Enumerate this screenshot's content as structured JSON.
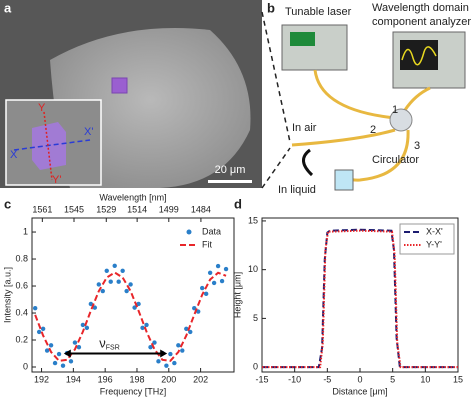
{
  "panels": {
    "a": {
      "label": "a",
      "scale_bar": "20 μm",
      "inset_labels": {
        "x": "X",
        "x_prime": "X'",
        "y": "Y",
        "y_prime": "Y'"
      }
    },
    "b": {
      "label": "b",
      "tunable_laser": "Tunable laser",
      "analyzer": [
        "Wavelength domain",
        "component analyzer"
      ],
      "in_air": "In air",
      "in_liquid": "In liquid",
      "circulator": "Circulator",
      "ports": [
        "1",
        "2",
        "3"
      ]
    }
  },
  "chart_data": [
    {
      "type": "scatter",
      "panel_label": "c",
      "xlabel": "Frequency [THz]",
      "ylabel": "Intensity [a.u.]",
      "x2label": "Wavelength [nm]",
      "xlim": [
        191.4,
        204.1
      ],
      "ylim": [
        -0.037,
        1.104
      ],
      "xticks": [
        192,
        194,
        196,
        198,
        200,
        202
      ],
      "yticks": [
        0,
        0.2,
        0.4,
        0.6,
        0.8,
        1
      ],
      "x2ticks": [
        {
          "value": 192.05,
          "label": "1561"
        },
        {
          "value": 194.04,
          "label": "1545"
        },
        {
          "value": 196.07,
          "label": "1529"
        },
        {
          "value": 198.01,
          "label": "1514"
        },
        {
          "value": 200.0,
          "label": "1499"
        },
        {
          "value": 202.02,
          "label": "1484"
        }
      ],
      "legend": "upper right",
      "series": [
        {
          "name": "Data",
          "type": "scatter",
          "color": "#2a7fc9",
          "x": [
            191.6,
            192.1,
            192.6,
            193.1,
            193.6,
            194.1,
            194.6,
            195.1,
            195.6,
            196.1,
            196.6,
            197.1,
            197.6,
            198.1,
            198.6,
            199.1,
            199.6,
            200.1,
            200.6,
            201.1,
            201.6,
            202.1,
            202.6,
            203.1,
            203.6,
            191.85,
            192.35,
            192.85,
            193.35,
            193.85,
            194.35,
            194.85,
            195.35,
            195.85,
            196.35,
            196.85,
            197.35,
            197.85,
            198.35,
            198.85,
            199.35,
            199.85,
            200.35,
            200.85,
            201.35,
            201.85,
            202.35,
            202.85,
            203.35
          ],
          "values": [
            0.436,
            0.283,
            0.161,
            0.096,
            0.103,
            0.181,
            0.312,
            0.467,
            0.612,
            0.713,
            0.75,
            0.713,
            0.612,
            0.467,
            0.312,
            0.181,
            0.103,
            0.096,
            0.161,
            0.283,
            0.436,
            0.585,
            0.698,
            0.748,
            0.726,
            0.26,
            0.122,
            0.029,
            0.01,
            0.042,
            0.147,
            0.29,
            0.44,
            0.563,
            0.632,
            0.632,
            0.563,
            0.44,
            0.29,
            0.147,
            0.042,
            0.01,
            0.029,
            0.122,
            0.26,
            0.411,
            0.542,
            0.623,
            0.637
          ]
        },
        {
          "name": "Fit",
          "type": "line",
          "color": "#e8262a",
          "x": [
            191.6,
            192.1,
            192.6,
            193.1,
            193.6,
            194.1,
            194.6,
            195.1,
            195.6,
            196.1,
            196.6,
            197.1,
            197.6,
            198.1,
            198.6,
            199.1,
            199.6,
            200.1,
            200.6,
            201.1,
            201.6,
            202.1,
            202.6,
            203.1,
            203.6
          ],
          "values": [
            0.386,
            0.233,
            0.111,
            0.046,
            0.053,
            0.131,
            0.262,
            0.417,
            0.562,
            0.663,
            0.7,
            0.663,
            0.562,
            0.417,
            0.262,
            0.131,
            0.053,
            0.046,
            0.111,
            0.233,
            0.386,
            0.535,
            0.648,
            0.698,
            0.676
          ]
        }
      ],
      "annotation": {
        "text": "ν",
        "subscript": "FSR",
        "x": [
          193.4,
          199.9
        ],
        "y": 0.1
      }
    },
    {
      "type": "line",
      "panel_label": "d",
      "xlabel": "Distance [μm]",
      "ylabel": "Height [μm]",
      "xlim": [
        -15,
        15
      ],
      "ylim": [
        -0.5,
        15.3
      ],
      "xticks": [
        -15,
        -10,
        -5,
        0,
        5,
        10,
        15
      ],
      "yticks": [
        0,
        5,
        10,
        15
      ],
      "legend": "upper right",
      "series": [
        {
          "name": "X-X'",
          "color": "#1c1c70",
          "linestyle": "dashed",
          "x": [
            -15,
            -6.3,
            -5.8,
            -5.4,
            -5.0,
            -4.6,
            0,
            4.8,
            5.2,
            5.6,
            6.1,
            15
          ],
          "values": [
            0,
            0,
            2,
            11,
            13.8,
            14,
            14.1,
            14,
            12,
            3,
            0,
            0
          ]
        },
        {
          "name": "Y-Y'",
          "color": "#e8262a",
          "linestyle": "dotted",
          "x": [
            -15,
            -6.1,
            -5.7,
            -5.3,
            -4.9,
            -4.5,
            0,
            4.9,
            5.3,
            5.7,
            6.2,
            15
          ],
          "values": [
            0,
            0,
            2.5,
            12,
            13.9,
            13.9,
            14,
            13.9,
            11.5,
            2.5,
            0,
            0
          ]
        }
      ]
    }
  ]
}
